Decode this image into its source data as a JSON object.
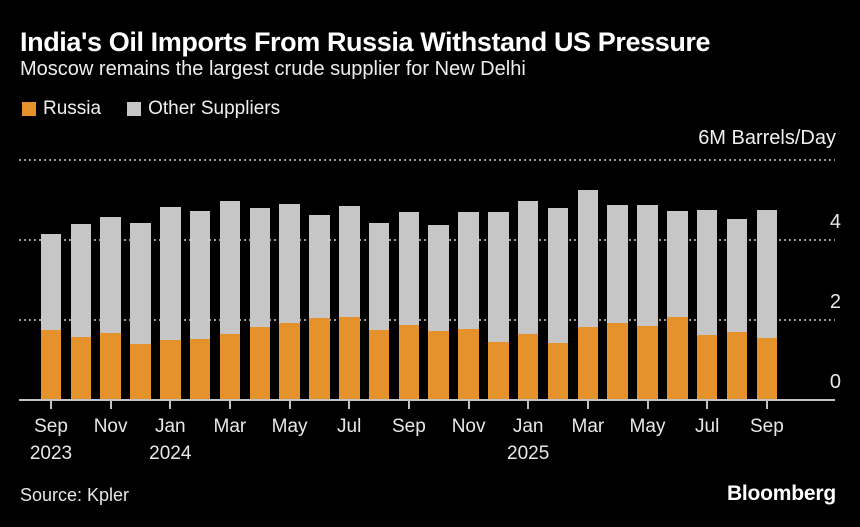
{
  "header": {
    "title": "India's Oil Imports From Russia Withstand US Pressure",
    "subtitle": "Moscow remains the largest crude supplier for New Delhi"
  },
  "legend": [
    {
      "label": "Russia",
      "color": "#e5922d"
    },
    {
      "label": "Other Suppliers",
      "color": "#c6c6c6"
    }
  ],
  "chart_data": {
    "type": "bar",
    "stacked": true,
    "unit_label": "6M Barrels/Day",
    "categories": [
      "Sep 2023",
      "Oct 2023",
      "Nov 2023",
      "Dec 2023",
      "Jan 2024",
      "Feb 2024",
      "Mar 2024",
      "Apr 2024",
      "May 2024",
      "Jun 2024",
      "Jul 2024",
      "Aug 2024",
      "Sep 2024",
      "Oct 2024",
      "Nov 2024",
      "Dec 2024",
      "Jan 2025",
      "Feb 2025",
      "Mar 2025",
      "Apr 2025",
      "May 2025",
      "Jun 2025",
      "Jul 2025",
      "Aug 2025",
      "Sep 2025"
    ],
    "series": [
      {
        "name": "Russia",
        "color": "#e5922d",
        "values": [
          1.76,
          1.57,
          1.67,
          1.4,
          1.49,
          1.52,
          1.64,
          1.82,
          1.93,
          2.04,
          2.07,
          1.74,
          1.88,
          1.73,
          1.77,
          1.44,
          1.64,
          1.43,
          1.82,
          1.93,
          1.84,
          2.07,
          1.62,
          1.7,
          1.56
        ]
      },
      {
        "name": "Other Suppliers",
        "color": "#c6c6c6",
        "values": [
          2.39,
          2.84,
          2.9,
          3.03,
          3.34,
          3.2,
          3.33,
          2.99,
          2.97,
          2.59,
          2.77,
          2.69,
          2.83,
          2.65,
          2.93,
          3.25,
          3.33,
          3.36,
          3.44,
          2.95,
          3.03,
          2.65,
          3.12,
          2.82,
          3.18
        ]
      }
    ],
    "ylim": [
      0,
      6
    ],
    "ytick_labels": [
      "0",
      "2",
      "4"
    ],
    "ytick_values": [
      0,
      2,
      4
    ],
    "gridline_values": [
      2,
      4,
      6
    ],
    "grid_color": "#9a9a9a",
    "axis_color": "#c2c2c2",
    "legend_position": "top-left",
    "x_ticks": [
      {
        "bar": 0,
        "month": "Sep",
        "year": "2023"
      },
      {
        "bar": 2,
        "month": "Nov"
      },
      {
        "bar": 4,
        "month": "Jan",
        "year": "2024"
      },
      {
        "bar": 6,
        "month": "Mar"
      },
      {
        "bar": 8,
        "month": "May"
      },
      {
        "bar": 10,
        "month": "Jul"
      },
      {
        "bar": 12,
        "month": "Sep"
      },
      {
        "bar": 14,
        "month": "Nov"
      },
      {
        "bar": 16,
        "month": "Jan",
        "year": "2025"
      },
      {
        "bar": 18,
        "month": "Mar"
      },
      {
        "bar": 20,
        "month": "May"
      },
      {
        "bar": 22,
        "month": "Jul"
      },
      {
        "bar": 24,
        "month": "Sep"
      }
    ]
  },
  "footer": {
    "source": "Source: Kpler",
    "brand": "Bloomberg"
  }
}
